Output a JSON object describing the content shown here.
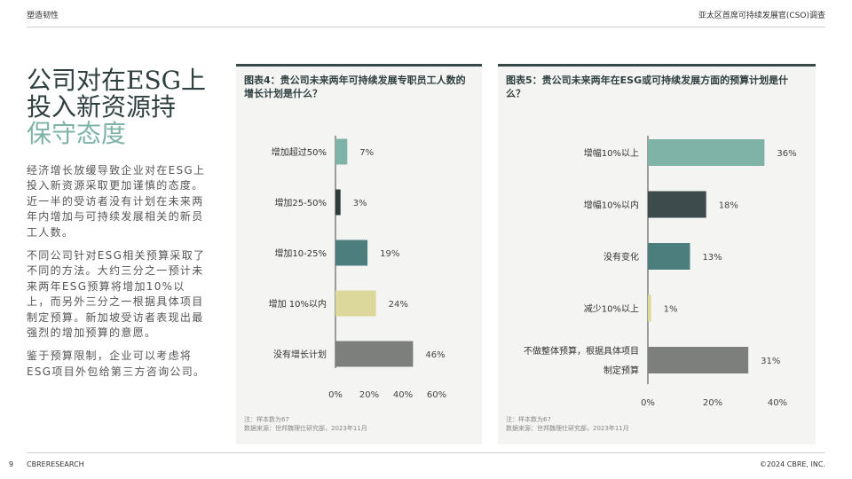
{
  "header": {
    "left": "塑造韧性",
    "right": "亚太区首席可持续发展官(CSO)调查"
  },
  "title": {
    "line1": "公司对在ESG上",
    "line2": "投入新资源持",
    "line3": "保守态度"
  },
  "body": {
    "p1": "经济增长放缓导致企业对在ESG上投入新资源采取更加谨慎的态度。近一半的受访者没有计划在未来两年内增加与可持续发展相关的新员工人数。",
    "p2": "不同公司针对ESG相关预算采取了不同的方法。大约三分之一预计未来两年ESG预算将增加10%以上，而另外三分之一根据具体项目制定预算。新加坡受访者表现出最强烈的增加预算的意愿。",
    "p3": "鉴于预算限制，企业可以考虑将ESG项目外包给第三方咨询公司。"
  },
  "chart_data": [
    {
      "type": "bar",
      "orientation": "horizontal",
      "title": "图表4：贵公司未来两年可持续发展专职员工人数的增长计划是什么？",
      "categories": [
        "增加超过50%",
        "增加25-50%",
        "增加10-25%",
        "增加 10%以内",
        "没有增长计划"
      ],
      "values": [
        7,
        3,
        19,
        24,
        46
      ],
      "value_labels": [
        "7%",
        "3%",
        "19%",
        "24%",
        "46%"
      ],
      "colors": [
        "#7fb3a7",
        "#2e3c3c",
        "#4d7e7e",
        "#dcd89b",
        "#7d7f7c"
      ],
      "xlim": [
        0,
        60
      ],
      "xticks": [
        "0%",
        "20%",
        "40%",
        "60%"
      ],
      "note": "注：样本数为67",
      "source": "数据来源：世邦魏理仕研究部，2023年11月"
    },
    {
      "type": "bar",
      "orientation": "horizontal",
      "title": "图表5：贵公司未来两年在ESG或可持续发展方面的预算计划是什么？",
      "categories": [
        "增幅10%以上",
        "增幅10%以内",
        "没有变化",
        "减少10%以上",
        "不做整体预算，根据具体项目制定预算"
      ],
      "category_lines": [
        [
          "增幅10%以上"
        ],
        [
          "增幅10%以内"
        ],
        [
          "没有变化"
        ],
        [
          "减少10%以上"
        ],
        [
          "不做整体预算，根据具体项目",
          "制定预算"
        ]
      ],
      "values": [
        36,
        18,
        13,
        1,
        31
      ],
      "value_labels": [
        "36%",
        "18%",
        "13%",
        "1%",
        "31%"
      ],
      "colors": [
        "#7fb3a7",
        "#3d4b4c",
        "#4d7e7e",
        "#dcd89b",
        "#7d7f7c"
      ],
      "xlim": [
        0,
        40
      ],
      "xticks": [
        "0%",
        "20%",
        "40%"
      ],
      "note": "注：样本数为67",
      "source": "数据来源：世邦魏理仕研究部，2023年11月"
    }
  ],
  "footer": {
    "page": "9",
    "left": "CBRERESEARCH",
    "right": "©2024 CBRE, INC."
  }
}
